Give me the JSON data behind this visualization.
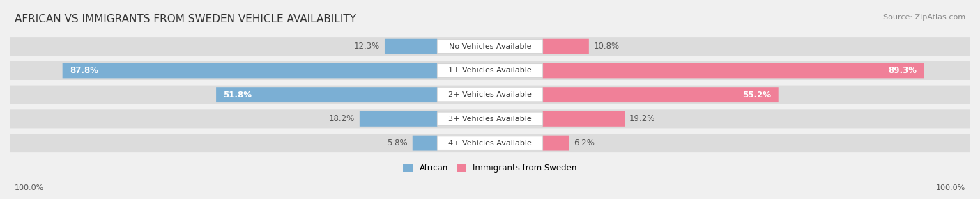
{
  "title": "AFRICAN VS IMMIGRANTS FROM SWEDEN VEHICLE AVAILABILITY",
  "source": "Source: ZipAtlas.com",
  "categories": [
    "No Vehicles Available",
    "1+ Vehicles Available",
    "2+ Vehicles Available",
    "3+ Vehicles Available",
    "4+ Vehicles Available"
  ],
  "african_values": [
    12.3,
    87.8,
    51.8,
    18.2,
    5.8
  ],
  "immigrant_values": [
    10.8,
    89.3,
    55.2,
    19.2,
    6.2
  ],
  "african_color": "#7bafd4",
  "immigrant_color": "#f08098",
  "african_label": "African",
  "immigrant_label": "Immigrants from Sweden",
  "background_color": "#f0f0f0",
  "bar_bg_color": "#e0e0e0",
  "axis_label_left": "100.0%",
  "axis_label_right": "100.0%",
  "title_fontsize": 11,
  "source_fontsize": 8,
  "bar_label_fontsize": 8.5,
  "category_fontsize": 8,
  "max_val": 100.0
}
